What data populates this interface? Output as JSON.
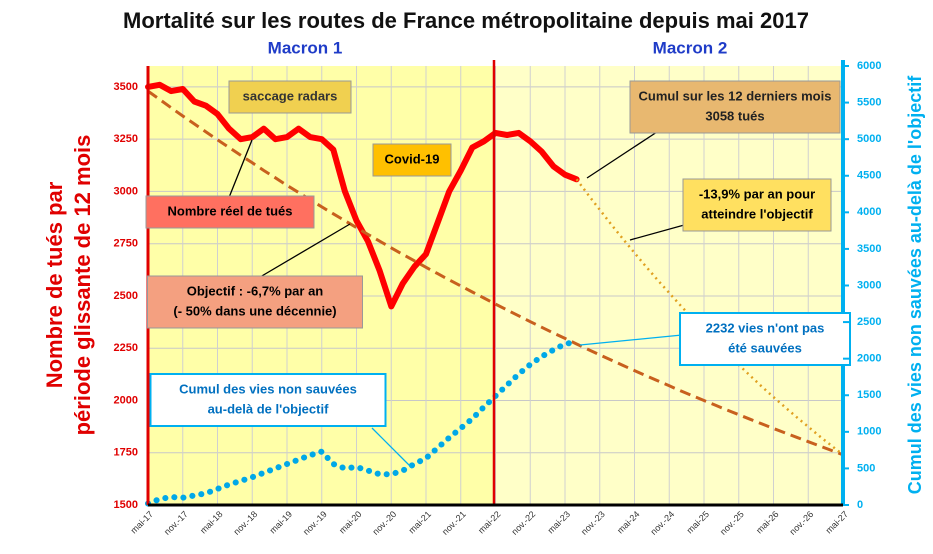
{
  "chart_data": {
    "type": "line",
    "title": "Mortalité sur les routes de France métropolitaine depuis mai 2017",
    "ylabel": [
      "Nombre de tués par",
      "période glissante de 12 mois"
    ],
    "y2label": "Cumul des vies non sauvées au-delà de l'objectif",
    "periods": [
      "Macron 1",
      "Macron 2"
    ],
    "categories": [
      "mai-17",
      null,
      null,
      "nov.-17",
      null,
      null,
      "mai-18",
      null,
      null,
      "nov.-18",
      null,
      null,
      "mai-19",
      null,
      null,
      "nov.-19",
      null,
      null,
      "mai-20",
      null,
      null,
      "nov.-20",
      null,
      null,
      "mai-21",
      null,
      null,
      "nov.-21",
      null,
      null,
      "mai-22",
      null,
      null,
      "nov.-22",
      null,
      null,
      "mai-23",
      null,
      null,
      "nov.-23",
      null,
      null,
      "mai-24",
      null,
      null,
      "nov.-24",
      null,
      null,
      "mai-25",
      null,
      null,
      "nov.-25",
      null,
      null,
      "mai-26",
      null,
      null,
      "nov.-26",
      null,
      null,
      "mai-27"
    ],
    "ylim": [
      1500,
      3600
    ],
    "yticks": [
      1500,
      1750,
      2000,
      2250,
      2500,
      2750,
      3000,
      3250,
      3500
    ],
    "y2lim": [
      0,
      6000
    ],
    "y2ticks": [
      0,
      500,
      1000,
      1500,
      2000,
      2500,
      3000,
      3500,
      4000,
      4500,
      5000,
      5500,
      6000
    ],
    "grid": true,
    "series": [
      {
        "color": "#ff0000",
        "style": "solid",
        "values": [
          3500,
          3510,
          3480,
          3490,
          3430,
          3410,
          3370,
          3300,
          3250,
          3260,
          3300,
          3250,
          3260,
          3300,
          3260,
          3250,
          3200,
          3000,
          2860,
          2760,
          2620,
          2450,
          2560,
          2640,
          2700,
          2850,
          3000,
          3100,
          3210,
          3240,
          3280,
          3270,
          3280,
          3240,
          3190,
          3120,
          3080,
          3058,
          null,
          null,
          null,
          null,
          null,
          null,
          null,
          null,
          null,
          null,
          null,
          null,
          null,
          null,
          null,
          null,
          null,
          null,
          null,
          null,
          null,
          null,
          null
        ]
      },
      {
        "color": "#c8601e",
        "style": "dashed",
        "values": [
          3480,
          3440,
          3400,
          3361,
          3323,
          3285,
          3247,
          3210,
          3173,
          3137,
          3100,
          3065,
          3029,
          2995,
          2960,
          2926,
          2893,
          2860,
          2827,
          2794,
          2762,
          2730,
          2699,
          2668,
          2637,
          2607,
          2577,
          2548,
          2519,
          2490,
          2461,
          2433,
          2405,
          2377,
          2350,
          2323,
          2297,
          2270,
          2244,
          2218,
          2193,
          2168,
          2143,
          2118,
          2094,
          2070,
          2046,
          2023,
          2000,
          1977,
          1954,
          1932,
          1910,
          1888,
          1866,
          1845,
          1824,
          1803,
          1782,
          1761,
          1740
        ]
      },
      {
        "color": "#e0a020",
        "style": "dotted",
        "values": [
          null,
          null,
          null,
          null,
          null,
          null,
          null,
          null,
          null,
          null,
          null,
          null,
          null,
          null,
          null,
          null,
          null,
          null,
          null,
          null,
          null,
          null,
          null,
          null,
          null,
          null,
          null,
          null,
          null,
          null,
          null,
          null,
          null,
          null,
          null,
          null,
          null,
          3058,
          2984,
          2912,
          2842,
          2773,
          2706,
          2640,
          2576,
          2514,
          2453,
          2394,
          2336,
          2279,
          2224,
          2170,
          2118,
          2066,
          2016,
          1968,
          1920,
          1874,
          1828,
          1784,
          1740
        ]
      },
      {
        "color": "#00a8e8",
        "style": "dots",
        "axis": "y2",
        "values": [
          20,
          80,
          110,
          100,
          130,
          160,
          220,
          280,
          330,
          380,
          440,
          500,
          560,
          620,
          680,
          730,
          560,
          500,
          520,
          470,
          420,
          420,
          470,
          560,
          640,
          780,
          920,
          1050,
          1180,
          1340,
          1490,
          1640,
          1790,
          1920,
          2030,
          2120,
          2200,
          2232,
          null,
          null,
          null,
          null,
          null,
          null,
          null,
          null,
          null,
          null,
          null,
          null,
          null,
          null,
          null,
          null,
          null,
          null,
          null,
          null,
          null,
          null,
          null
        ]
      }
    ],
    "annotations": [
      {
        "lines": [
          "saccage radars"
        ],
        "fill": "#f0d050",
        "text": "#333333"
      },
      {
        "lines": [
          "Covid-19"
        ],
        "fill": "#ffc000",
        "text": "#000000"
      },
      {
        "lines": [
          "Nombre réel de tués"
        ],
        "fill": "#ff7060",
        "text": "#000000"
      },
      {
        "lines": [
          "Objectif : -6,7% par an",
          "(- 50% dans une décennie)"
        ],
        "fill": "#f4a080",
        "text": "#000000"
      },
      {
        "lines": [
          "Cumul sur les 12 derniers mois",
          "3058 tués"
        ],
        "fill": "#e8b870",
        "text": "#222222"
      },
      {
        "lines": [
          "-13,9% par an pour",
          "atteindre l'objectif"
        ],
        "fill": "#ffe060",
        "text": "#000000"
      },
      {
        "lines": [
          "Cumul des vies non sauvées",
          "au-delà de l'objectif"
        ],
        "fill": "#ffffff",
        "text": "#0070c0",
        "border": "#00b0f0"
      },
      {
        "lines": [
          "2232 vies n'ont pas",
          "été sauvées"
        ],
        "fill": "#ffffff",
        "text": "#0070c0",
        "border": "#00b0f0"
      }
    ]
  }
}
